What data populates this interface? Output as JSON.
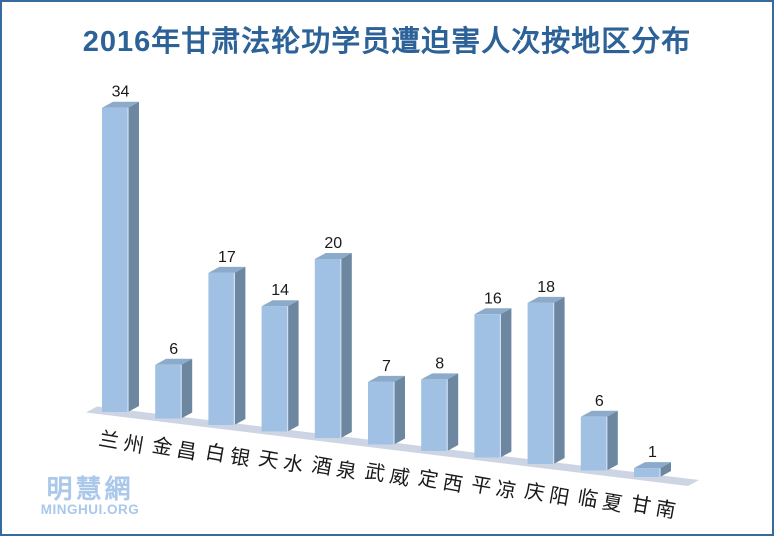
{
  "title_block": {
    "title": "2016年甘肃法轮功学员遭迫害人次按地区分布",
    "title_color": "#2c6297"
  },
  "watermark": {
    "cjk": "明慧網",
    "latin": "MINGHUI.ORG",
    "color": "#aac8ea"
  },
  "frame": {
    "border_color": "#376b9f"
  },
  "chart_data": {
    "type": "bar",
    "style": "3d-column",
    "title": "2016年甘肃法轮功学员遭迫害人次按地区分布",
    "categories": [
      "兰州",
      "金昌",
      "白银",
      "天水",
      "酒泉",
      "武威",
      "定西",
      "平凉",
      "庆阳",
      "临夏",
      "甘南"
    ],
    "values": [
      34,
      6,
      17,
      14,
      20,
      7,
      8,
      16,
      18,
      6,
      1
    ],
    "xlabel": "",
    "ylabel": "",
    "ylim": [
      0,
      34
    ],
    "grid": false,
    "legend": false,
    "data_labels": true,
    "colors": {
      "bar_front": "#a0c1e3",
      "bar_side": "#6e87a0",
      "bar_top": "#8caac9",
      "bar_edge_highlight": "#cfe0f2",
      "floor": "#cdd5e4",
      "value_label": "#1a1a1a",
      "category_label": "#1a1a1a"
    }
  }
}
